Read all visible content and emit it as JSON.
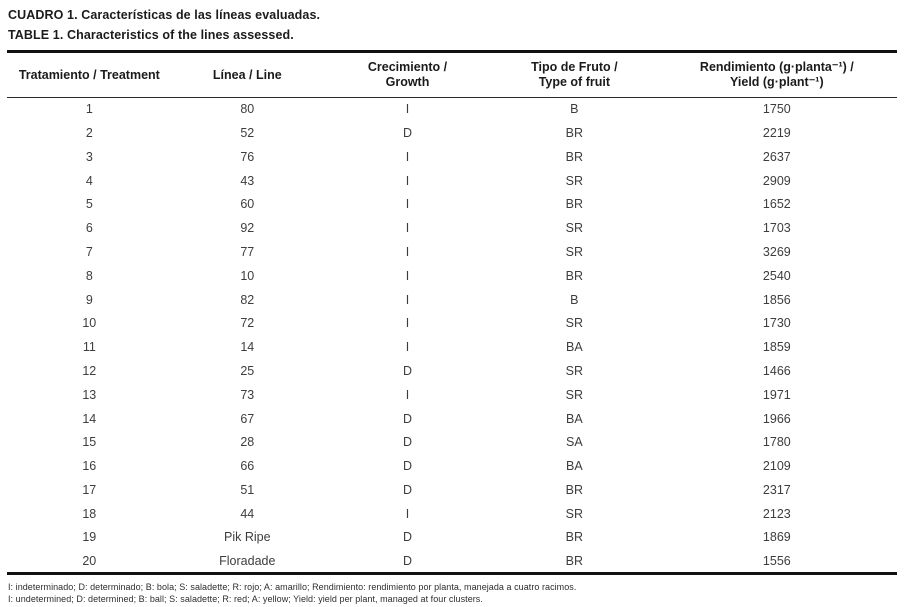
{
  "title": {
    "es": "CUADRO 1. Características de las líneas evaluadas.",
    "en": "TABLE 1. Characteristics of the lines assessed."
  },
  "table": {
    "headers": [
      {
        "line1": "Tratamiento / Treatment",
        "line2": ""
      },
      {
        "line1": "Línea / Line",
        "line2": ""
      },
      {
        "line1": "Crecimiento /",
        "line2": "Growth"
      },
      {
        "line1": "Tipo de Fruto /",
        "line2": "Type of fruit"
      },
      {
        "line1": "Rendimiento (g·planta⁻¹) /",
        "line2": "Yield (g·plant⁻¹)"
      }
    ],
    "rows": [
      {
        "treatment": "1",
        "line": "80",
        "growth": "I",
        "fruit": "B",
        "yield": "1750"
      },
      {
        "treatment": "2",
        "line": "52",
        "growth": "D",
        "fruit": "BR",
        "yield": "2219"
      },
      {
        "treatment": "3",
        "line": "76",
        "growth": "I",
        "fruit": "BR",
        "yield": "2637"
      },
      {
        "treatment": "4",
        "line": "43",
        "growth": "I",
        "fruit": "SR",
        "yield": "2909"
      },
      {
        "treatment": "5",
        "line": "60",
        "growth": "I",
        "fruit": "BR",
        "yield": "1652"
      },
      {
        "treatment": "6",
        "line": "92",
        "growth": "I",
        "fruit": "SR",
        "yield": "1703"
      },
      {
        "treatment": "7",
        "line": "77",
        "growth": "I",
        "fruit": "SR",
        "yield": "3269"
      },
      {
        "treatment": "8",
        "line": "10",
        "growth": "I",
        "fruit": "BR",
        "yield": "2540"
      },
      {
        "treatment": "9",
        "line": "82",
        "growth": "I",
        "fruit": "B",
        "yield": "1856"
      },
      {
        "treatment": "10",
        "line": "72",
        "growth": "I",
        "fruit": "SR",
        "yield": "1730"
      },
      {
        "treatment": "11",
        "line": "14",
        "growth": "I",
        "fruit": "BA",
        "yield": "1859"
      },
      {
        "treatment": "12",
        "line": "25",
        "growth": "D",
        "fruit": "SR",
        "yield": "1466"
      },
      {
        "treatment": "13",
        "line": "73",
        "growth": "I",
        "fruit": "SR",
        "yield": "1971"
      },
      {
        "treatment": "14",
        "line": "67",
        "growth": "D",
        "fruit": "BA",
        "yield": "1966"
      },
      {
        "treatment": "15",
        "line": "28",
        "growth": "D",
        "fruit": "SA",
        "yield": "1780"
      },
      {
        "treatment": "16",
        "line": "66",
        "growth": "D",
        "fruit": "BA",
        "yield": "2109"
      },
      {
        "treatment": "17",
        "line": "51",
        "growth": "D",
        "fruit": "BR",
        "yield": "2317"
      },
      {
        "treatment": "18",
        "line": "44",
        "growth": "I",
        "fruit": "SR",
        "yield": "2123"
      },
      {
        "treatment": "19",
        "line": "Pik Ripe",
        "growth": "D",
        "fruit": "BR",
        "yield": "1869"
      },
      {
        "treatment": "20",
        "line": "Floradade",
        "growth": "D",
        "fruit": "BR",
        "yield": "1556"
      }
    ]
  },
  "footnotes": {
    "es": "I: indeterminado; D: determinado; B: bola; S: saladette; R: rojo; A: amarillo; Rendimiento: rendimiento por planta, manejada a cuatro racimos.",
    "en": "I: undetermined; D: determined; B: ball; S: saladette; R: red; A: yellow; Yield: yield per plant, managed at four clusters."
  }
}
